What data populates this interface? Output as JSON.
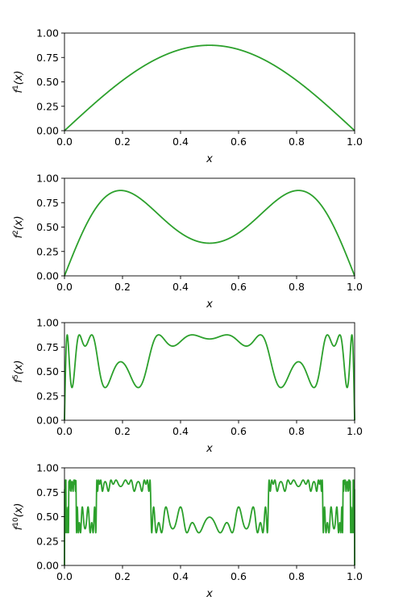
{
  "chart_data": [
    {
      "type": "line",
      "series": [
        {
          "iterations": 1,
          "color": "#2ca02c",
          "r": 3.5
        }
      ],
      "xlabel": "x",
      "ylabel": {
        "base": "f",
        "sup": "1",
        "arg": "(x)"
      },
      "xlim": [
        0,
        1
      ],
      "ylim": [
        0,
        1
      ],
      "xticks": [
        "0.0",
        "0.2",
        "0.4",
        "0.6",
        "0.8",
        "1.0"
      ],
      "yticks": [
        "0.00",
        "0.25",
        "0.50",
        "0.75",
        "1.00"
      ],
      "grid": false
    },
    {
      "type": "line",
      "series": [
        {
          "iterations": 2,
          "color": "#2ca02c",
          "r": 3.5
        }
      ],
      "xlabel": "x",
      "ylabel": {
        "base": "f",
        "sup": "2",
        "arg": "(x)"
      },
      "xlim": [
        0,
        1
      ],
      "ylim": [
        0,
        1
      ],
      "xticks": [
        "0.0",
        "0.2",
        "0.4",
        "0.6",
        "0.8",
        "1.0"
      ],
      "yticks": [
        "0.00",
        "0.25",
        "0.50",
        "0.75",
        "1.00"
      ],
      "grid": false
    },
    {
      "type": "line",
      "series": [
        {
          "iterations": 5,
          "color": "#2ca02c",
          "r": 3.5
        }
      ],
      "xlabel": "x",
      "ylabel": {
        "base": "f",
        "sup": "5",
        "arg": "(x)"
      },
      "xlim": [
        0,
        1
      ],
      "ylim": [
        0,
        1
      ],
      "xticks": [
        "0.0",
        "0.2",
        "0.4",
        "0.6",
        "0.8",
        "1.0"
      ],
      "yticks": [
        "0.00",
        "0.25",
        "0.50",
        "0.75",
        "1.00"
      ],
      "grid": false
    },
    {
      "type": "line",
      "series": [
        {
          "iterations": 10,
          "color": "#2ca02c",
          "r": 3.5
        }
      ],
      "xlabel": "x",
      "ylabel": {
        "base": "f",
        "sup": "10",
        "arg": "(x)"
      },
      "xlim": [
        0,
        1
      ],
      "ylim": [
        0,
        1
      ],
      "xticks": [
        "0.0",
        "0.2",
        "0.4",
        "0.6",
        "0.8",
        "1.0"
      ],
      "yticks": [
        "0.00",
        "0.25",
        "0.50",
        "0.75",
        "1.00"
      ],
      "grid": false
    }
  ]
}
